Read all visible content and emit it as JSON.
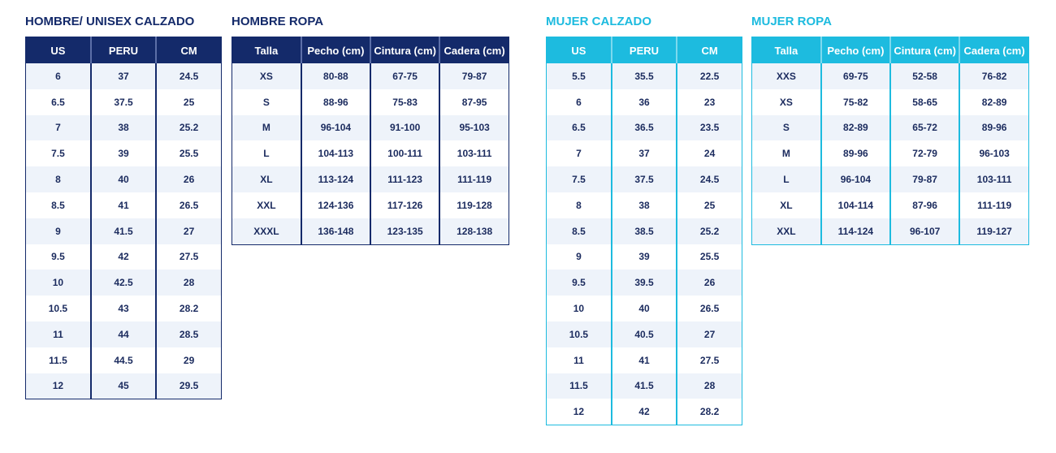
{
  "colors": {
    "navy": "#142a6a",
    "cyan": "#1dbbdf"
  },
  "tables": [
    {
      "title": "HOMBRE/ UNISEX CALZADO",
      "headers": [
        "US",
        "PERU",
        "CM"
      ],
      "rows": [
        [
          "6",
          "37",
          "24.5"
        ],
        [
          "6.5",
          "37.5",
          "25"
        ],
        [
          "7",
          "38",
          "25.2"
        ],
        [
          "7.5",
          "39",
          "25.5"
        ],
        [
          "8",
          "40",
          "26"
        ],
        [
          "8.5",
          "41",
          "26.5"
        ],
        [
          "9",
          "41.5",
          "27"
        ],
        [
          "9.5",
          "42",
          "27.5"
        ],
        [
          "10",
          "42.5",
          "28"
        ],
        [
          "10.5",
          "43",
          "28.2"
        ],
        [
          "11",
          "44",
          "28.5"
        ],
        [
          "11.5",
          "44.5",
          "29"
        ],
        [
          "12",
          "45",
          "29.5"
        ]
      ]
    },
    {
      "title": "HOMBRE ROPA",
      "headers": [
        "Talla",
        "Pecho (cm)",
        "Cintura (cm)",
        "Cadera (cm)"
      ],
      "rows": [
        [
          "XS",
          "80-88",
          "67-75",
          "79-87"
        ],
        [
          "S",
          "88-96",
          "75-83",
          "87-95"
        ],
        [
          "M",
          "96-104",
          "91-100",
          "95-103"
        ],
        [
          "L",
          "104-113",
          "100-111",
          "103-111"
        ],
        [
          "XL",
          "113-124",
          "111-123",
          "111-119"
        ],
        [
          "XXL",
          "124-136",
          "117-126",
          "119-128"
        ],
        [
          "XXXL",
          "136-148",
          "123-135",
          "128-138"
        ]
      ]
    },
    {
      "title": "MUJER CALZADO",
      "headers": [
        "US",
        "PERU",
        "CM"
      ],
      "rows": [
        [
          "5.5",
          "35.5",
          "22.5"
        ],
        [
          "6",
          "36",
          "23"
        ],
        [
          "6.5",
          "36.5",
          "23.5"
        ],
        [
          "7",
          "37",
          "24"
        ],
        [
          "7.5",
          "37.5",
          "24.5"
        ],
        [
          "8",
          "38",
          "25"
        ],
        [
          "8.5",
          "38.5",
          "25.2"
        ],
        [
          "9",
          "39",
          "25.5"
        ],
        [
          "9.5",
          "39.5",
          "26"
        ],
        [
          "10",
          "40",
          "26.5"
        ],
        [
          "10.5",
          "40.5",
          "27"
        ],
        [
          "11",
          "41",
          "27.5"
        ],
        [
          "11.5",
          "41.5",
          "28"
        ],
        [
          "12",
          "42",
          "28.2"
        ]
      ]
    },
    {
      "title": "MUJER ROPA",
      "headers": [
        "Talla",
        "Pecho (cm)",
        "Cintura (cm)",
        "Cadera (cm)"
      ],
      "rows": [
        [
          "XXS",
          "69-75",
          "52-58",
          "76-82"
        ],
        [
          "XS",
          "75-82",
          "58-65",
          "82-89"
        ],
        [
          "S",
          "82-89",
          "65-72",
          "89-96"
        ],
        [
          "M",
          "89-96",
          "72-79",
          "96-103"
        ],
        [
          "L",
          "96-104",
          "79-87",
          "103-111"
        ],
        [
          "XL",
          "104-114",
          "87-96",
          "111-119"
        ],
        [
          "XXL",
          "114-124",
          "96-107",
          "119-127"
        ]
      ]
    }
  ]
}
